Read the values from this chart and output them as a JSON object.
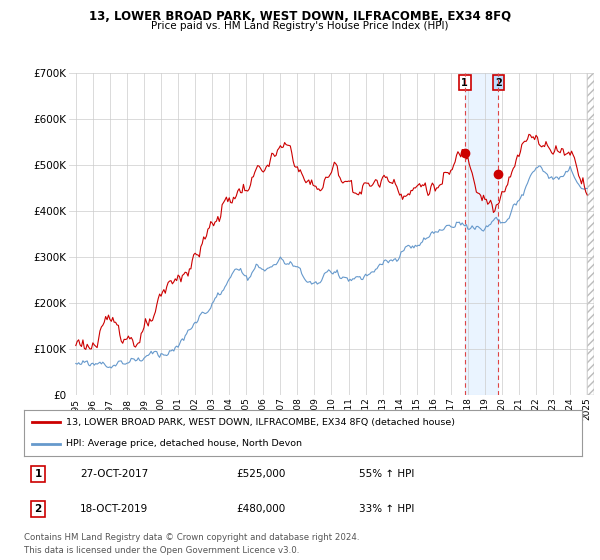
{
  "title": "13, LOWER BROAD PARK, WEST DOWN, ILFRACOMBE, EX34 8FQ",
  "subtitle": "Price paid vs. HM Land Registry's House Price Index (HPI)",
  "property_label": "13, LOWER BROAD PARK, WEST DOWN, ILFRACOMBE, EX34 8FQ (detached house)",
  "hpi_label": "HPI: Average price, detached house, North Devon",
  "sale1_date": "27-OCT-2017",
  "sale1_price": 525000,
  "sale1_pct": "55% ↑ HPI",
  "sale2_date": "18-OCT-2019",
  "sale2_price": 480000,
  "sale2_pct": "33% ↑ HPI",
  "sale1_year": 2017.82,
  "sale2_year": 2019.79,
  "ylim": [
    0,
    700000
  ],
  "xlim_start": 1994.6,
  "xlim_end": 2025.4,
  "footer1": "Contains HM Land Registry data © Crown copyright and database right 2024.",
  "footer2": "This data is licensed under the Open Government Licence v3.0.",
  "red_color": "#cc0000",
  "blue_color": "#6699cc",
  "dashed_color": "#dd4444",
  "shade_color": "#ddeeff",
  "hatch_color": "#cccccc"
}
